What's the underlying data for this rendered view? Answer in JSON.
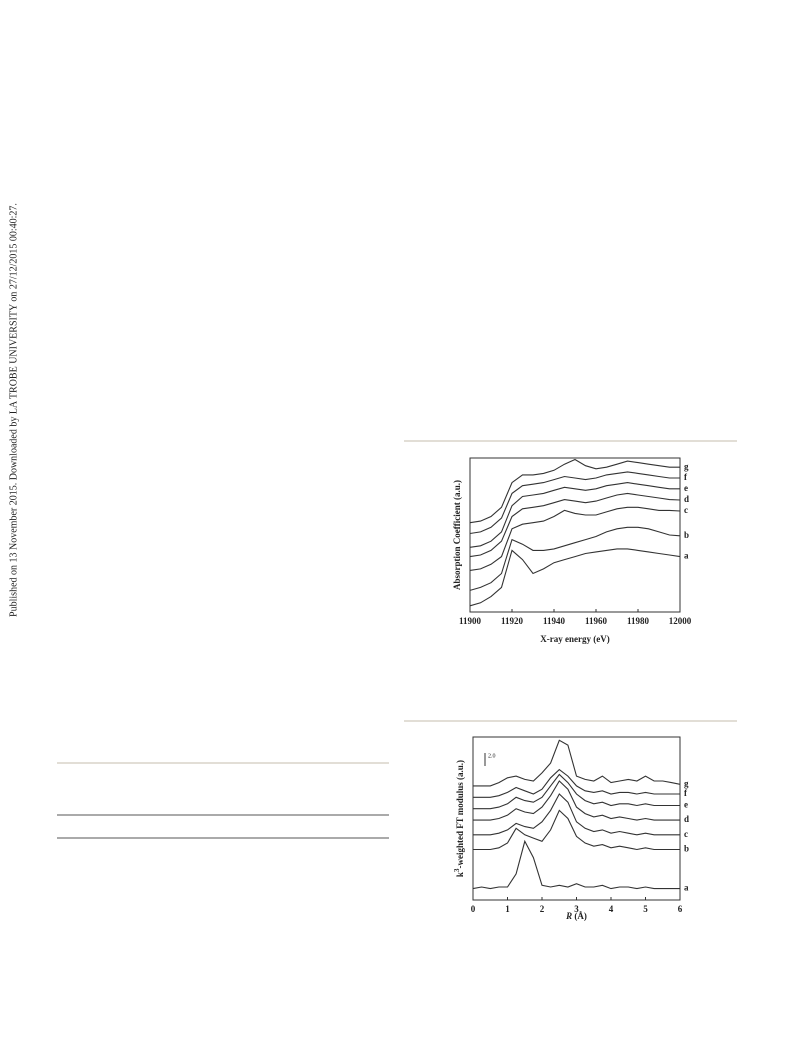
{
  "sidebar": "Published on 13 November 2015. Downloaded by LA TROBE UNIVERSITY on 27/12/2015 00:40:27.",
  "chart_data": [
    {
      "type": "line",
      "xlabel": "X-ray energy (eV)",
      "ylabel": "Absorption Coefficient (a.u.)",
      "x": [
        11900,
        11905,
        11910,
        11915,
        11920,
        11925,
        11930,
        11935,
        11940,
        11945,
        11950,
        11955,
        11960,
        11965,
        11970,
        11975,
        11980,
        11985,
        11990,
        11995,
        12000
      ],
      "xlim": [
        11900,
        12000
      ],
      "xticks": [
        11900,
        11920,
        11940,
        11960,
        11980,
        12000
      ],
      "ylim": [
        0,
        10
      ],
      "series": [
        {
          "name": "a",
          "color": "#333333",
          "values": [
            0.4,
            0.6,
            1.0,
            1.6,
            4.0,
            3.4,
            2.5,
            2.8,
            3.2,
            3.4,
            3.6,
            3.8,
            3.9,
            4.0,
            4.1,
            4.1,
            4.0,
            3.9,
            3.8,
            3.7,
            3.6
          ]
        },
        {
          "name": "b",
          "color": "#333333",
          "values": [
            1.4,
            1.6,
            1.9,
            2.5,
            4.7,
            4.4,
            4.0,
            4.0,
            4.1,
            4.3,
            4.5,
            4.7,
            4.9,
            5.2,
            5.4,
            5.5,
            5.5,
            5.4,
            5.2,
            5.0,
            4.95
          ]
        },
        {
          "name": "c",
          "color": "#333333",
          "values": [
            2.7,
            2.8,
            3.1,
            3.6,
            5.4,
            5.7,
            5.8,
            5.9,
            6.2,
            6.6,
            6.4,
            6.3,
            6.3,
            6.5,
            6.7,
            6.8,
            6.8,
            6.7,
            6.6,
            6.6,
            6.56
          ]
        },
        {
          "name": "d",
          "color": "#333333",
          "values": [
            3.6,
            3.7,
            4.0,
            4.6,
            6.2,
            6.7,
            6.8,
            6.9,
            7.1,
            7.3,
            7.2,
            7.1,
            7.2,
            7.4,
            7.6,
            7.7,
            7.6,
            7.5,
            7.4,
            7.3,
            7.27
          ]
        },
        {
          "name": "e",
          "color": "#333333",
          "values": [
            4.2,
            4.3,
            4.6,
            5.2,
            6.9,
            7.5,
            7.6,
            7.7,
            7.9,
            8.1,
            8.0,
            7.9,
            8.0,
            8.2,
            8.3,
            8.4,
            8.3,
            8.2,
            8.1,
            8.0,
            8.0
          ]
        },
        {
          "name": "f",
          "color": "#333333",
          "values": [
            5.1,
            5.2,
            5.5,
            6.1,
            7.7,
            8.2,
            8.3,
            8.4,
            8.6,
            8.8,
            8.7,
            8.6,
            8.7,
            8.9,
            9.0,
            9.1,
            9.0,
            8.9,
            8.8,
            8.7,
            8.7
          ]
        },
        {
          "name": "g",
          "color": "#333333",
          "values": [
            5.8,
            5.9,
            6.2,
            6.8,
            8.4,
            8.9,
            8.9,
            9.0,
            9.2,
            9.6,
            9.9,
            9.5,
            9.3,
            9.4,
            9.6,
            9.8,
            9.7,
            9.6,
            9.5,
            9.4,
            9.4
          ]
        }
      ]
    },
    {
      "type": "line",
      "xlabel": [
        "R",
        " (Å)"
      ],
      "ylabel": [
        "k",
        "3",
        "-weighted FT modulus (a.u.)"
      ],
      "x": [
        0,
        0.25,
        0.5,
        0.75,
        1,
        1.25,
        1.5,
        1.75,
        2,
        2.25,
        2.5,
        2.75,
        3,
        3.25,
        3.5,
        3.75,
        4,
        4.25,
        4.5,
        4.75,
        5,
        5.25,
        5.5,
        5.75,
        6
      ],
      "xlim": [
        0,
        6
      ],
      "xticks": [
        0,
        1,
        2,
        3,
        4,
        5,
        6
      ],
      "ylim": [
        0,
        10
      ],
      "scale_bar": {
        "value": 2.0,
        "label": "2.0"
      },
      "series": [
        {
          "name": "a",
          "color": "#333333",
          "values": [
            0.7,
            0.8,
            0.7,
            0.8,
            0.8,
            1.6,
            3.6,
            2.6,
            0.9,
            0.8,
            0.9,
            0.8,
            1.0,
            0.8,
            0.8,
            0.9,
            0.7,
            0.8,
            0.8,
            0.7,
            0.8,
            0.7,
            0.7,
            0.7,
            0.7
          ]
        },
        {
          "name": "b",
          "color": "#333333",
          "values": [
            3.1,
            3.1,
            3.1,
            3.2,
            3.5,
            4.4,
            4.0,
            3.8,
            3.6,
            4.3,
            5.5,
            5.0,
            3.9,
            3.5,
            3.3,
            3.4,
            3.2,
            3.3,
            3.2,
            3.1,
            3.2,
            3.1,
            3.1,
            3.1,
            3.1
          ]
        },
        {
          "name": "c",
          "color": "#333333",
          "values": [
            4.0,
            4.0,
            4.0,
            4.1,
            4.3,
            4.7,
            4.5,
            4.4,
            4.8,
            5.5,
            6.5,
            6.0,
            4.8,
            4.4,
            4.2,
            4.3,
            4.1,
            4.2,
            4.1,
            4.0,
            4.1,
            4.0,
            4.0,
            4.0,
            4.0
          ]
        },
        {
          "name": "d",
          "color": "#333333",
          "values": [
            4.9,
            4.9,
            4.9,
            5.0,
            5.2,
            5.6,
            5.4,
            5.3,
            5.7,
            6.4,
            7.3,
            6.8,
            5.7,
            5.3,
            5.1,
            5.2,
            5.0,
            5.1,
            5.0,
            4.9,
            5.0,
            4.9,
            4.9,
            4.9,
            4.9
          ]
        },
        {
          "name": "e",
          "color": "#333333",
          "values": [
            5.6,
            5.6,
            5.6,
            5.7,
            5.9,
            6.3,
            6.1,
            6.0,
            6.3,
            7.0,
            7.7,
            7.2,
            6.5,
            6.1,
            5.9,
            6.0,
            5.8,
            5.9,
            5.9,
            5.8,
            5.9,
            5.8,
            5.8,
            5.8,
            5.8
          ]
        },
        {
          "name": "f",
          "color": "#333333",
          "values": [
            6.3,
            6.3,
            6.3,
            6.4,
            6.6,
            6.9,
            6.7,
            6.5,
            6.8,
            7.5,
            8.0,
            7.6,
            7.0,
            6.7,
            6.6,
            6.7,
            6.5,
            6.6,
            6.6,
            6.5,
            6.6,
            6.5,
            6.5,
            6.5,
            6.5
          ]
        },
        {
          "name": "g",
          "color": "#333333",
          "values": [
            7.0,
            7.0,
            7.0,
            7.2,
            7.5,
            7.6,
            7.4,
            7.3,
            7.8,
            8.4,
            9.8,
            9.5,
            7.6,
            7.4,
            7.3,
            7.6,
            7.2,
            7.3,
            7.4,
            7.3,
            7.6,
            7.3,
            7.3,
            7.2,
            7.1
          ]
        }
      ]
    }
  ]
}
